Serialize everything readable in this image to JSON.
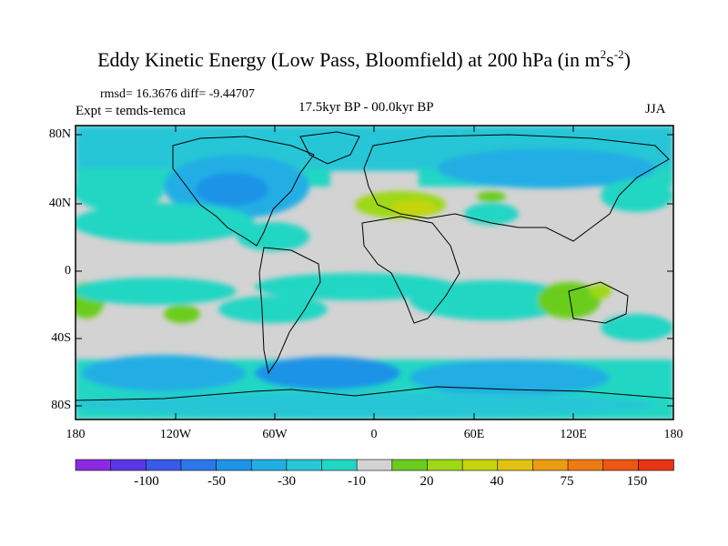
{
  "title": {
    "main": "Eddy Kinetic Energy (Low Pass, Bloomfield) at 200 hPa (in m",
    "sup1": "2",
    "mid": "s",
    "sup2": "-2",
    "end": ")"
  },
  "stats": "rmsd= 16.3676 diff= -9.44707",
  "expt": "Expt = temds-temca",
  "period": "17.5kyr BP - 00.0kyr BP",
  "season": "JJA",
  "map": {
    "y_labels": [
      "80N",
      "40N",
      "0",
      "40S",
      "80S"
    ],
    "x_labels": [
      "180",
      "120W",
      "60W",
      "0",
      "60E",
      "120E",
      "180"
    ],
    "colors": {
      "background": "#d3d3d3",
      "land_line": "#000000"
    }
  },
  "colorbar": {
    "labels": [
      "-100",
      "-50",
      "-30",
      "-10",
      "20",
      "40",
      "75",
      "150"
    ],
    "colors": [
      "#8a2be2",
      "#5a37e6",
      "#3a5ae8",
      "#2a78e8",
      "#1e93e6",
      "#22aee4",
      "#28c6d6",
      "#22d6c4",
      "#d3d3d3",
      "#6acd1e",
      "#9ed816",
      "#c6d410",
      "#e0c210",
      "#ec9c10",
      "#ee7a14",
      "#ec5814",
      "#e83414"
    ]
  }
}
